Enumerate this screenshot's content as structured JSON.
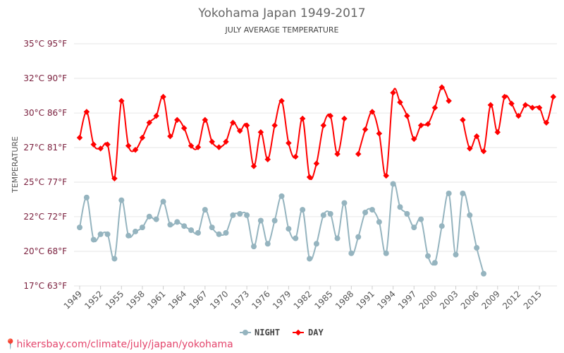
{
  "chart_data": {
    "type": "line",
    "title": "Yokohama Japan 1949-2017",
    "subtitle": "JULY AVERAGE TEMPERATURE",
    "ylabel": "TEMPERATURE",
    "xlabel": "",
    "ylim": [
      17.2,
      35.0
    ],
    "yticks": [
      {
        "value": 17.2,
        "label": "17°C 63°F"
      },
      {
        "value": 19.74,
        "label": "20°C 68°F"
      },
      {
        "value": 22.29,
        "label": "22°C 72°F"
      },
      {
        "value": 24.83,
        "label": "25°C 77°F"
      },
      {
        "value": 27.37,
        "label": "27°C 81°F"
      },
      {
        "value": 29.91,
        "label": "30°C 86°F"
      },
      {
        "value": 32.46,
        "label": "32°C 90°F"
      },
      {
        "value": 35.0,
        "label": "35°C 95°F"
      }
    ],
    "xticks": [
      "1949",
      "1952",
      "1955",
      "1958",
      "1961",
      "1964",
      "1967",
      "1970",
      "1973",
      "1976",
      "1979",
      "1982",
      "1985",
      "1988",
      "1991",
      "1994",
      "1997",
      "2000",
      "2003",
      "2006",
      "2009",
      "2012",
      "2015"
    ],
    "x_start": 1949,
    "x_end": 2017,
    "grid": true,
    "legend_position": "bottom",
    "series": [
      {
        "name": "NIGHT",
        "color": "#95b4bf",
        "marker": "circle",
        "values": [
          21.5,
          23.7,
          20.6,
          21.0,
          21.0,
          19.2,
          23.5,
          20.9,
          21.2,
          21.5,
          22.3,
          22.1,
          23.4,
          21.7,
          21.9,
          21.6,
          21.3,
          21.1,
          22.8,
          21.5,
          21.0,
          21.1,
          22.4,
          22.5,
          22.4,
          20.1,
          22.0,
          20.3,
          22.0,
          23.8,
          21.4,
          20.7,
          22.8,
          19.2,
          20.3,
          22.4,
          22.5,
          20.7,
          23.3,
          19.6,
          20.8,
          22.6,
          22.8,
          21.9,
          19.6,
          24.7,
          23.0,
          22.5,
          21.5,
          22.1,
          19.4,
          18.9,
          21.6,
          24.0,
          19.5,
          24.0,
          22.4,
          20.0,
          18.1,
          null,
          null,
          null,
          null,
          null,
          null,
          null,
          null,
          null,
          null
        ]
      },
      {
        "name": "DAY",
        "color": "#ff0000",
        "marker": "diamond",
        "values": [
          28.1,
          30.0,
          27.6,
          27.3,
          27.6,
          25.1,
          30.8,
          27.5,
          27.2,
          28.1,
          29.2,
          29.7,
          31.1,
          28.2,
          29.4,
          28.8,
          27.5,
          27.4,
          29.4,
          27.8,
          27.4,
          27.8,
          29.2,
          28.6,
          29.0,
          26.0,
          28.5,
          26.5,
          29.0,
          30.8,
          27.7,
          26.7,
          29.5,
          25.2,
          26.2,
          29.0,
          29.7,
          26.9,
          29.5,
          null,
          26.9,
          28.7,
          30.0,
          28.4,
          25.3,
          31.4,
          30.7,
          29.7,
          28.0,
          29.0,
          29.1,
          30.3,
          31.8,
          30.8,
          null,
          29.4,
          27.3,
          28.2,
          27.1,
          30.5,
          28.5,
          31.1,
          30.6,
          29.7,
          30.5,
          30.3,
          30.3,
          29.2,
          31.1
        ]
      }
    ]
  },
  "footer": {
    "text": "hikersbay.com/climate/july/japan/yokohama",
    "icon": "map-pin-icon",
    "color": "#e4456c"
  }
}
